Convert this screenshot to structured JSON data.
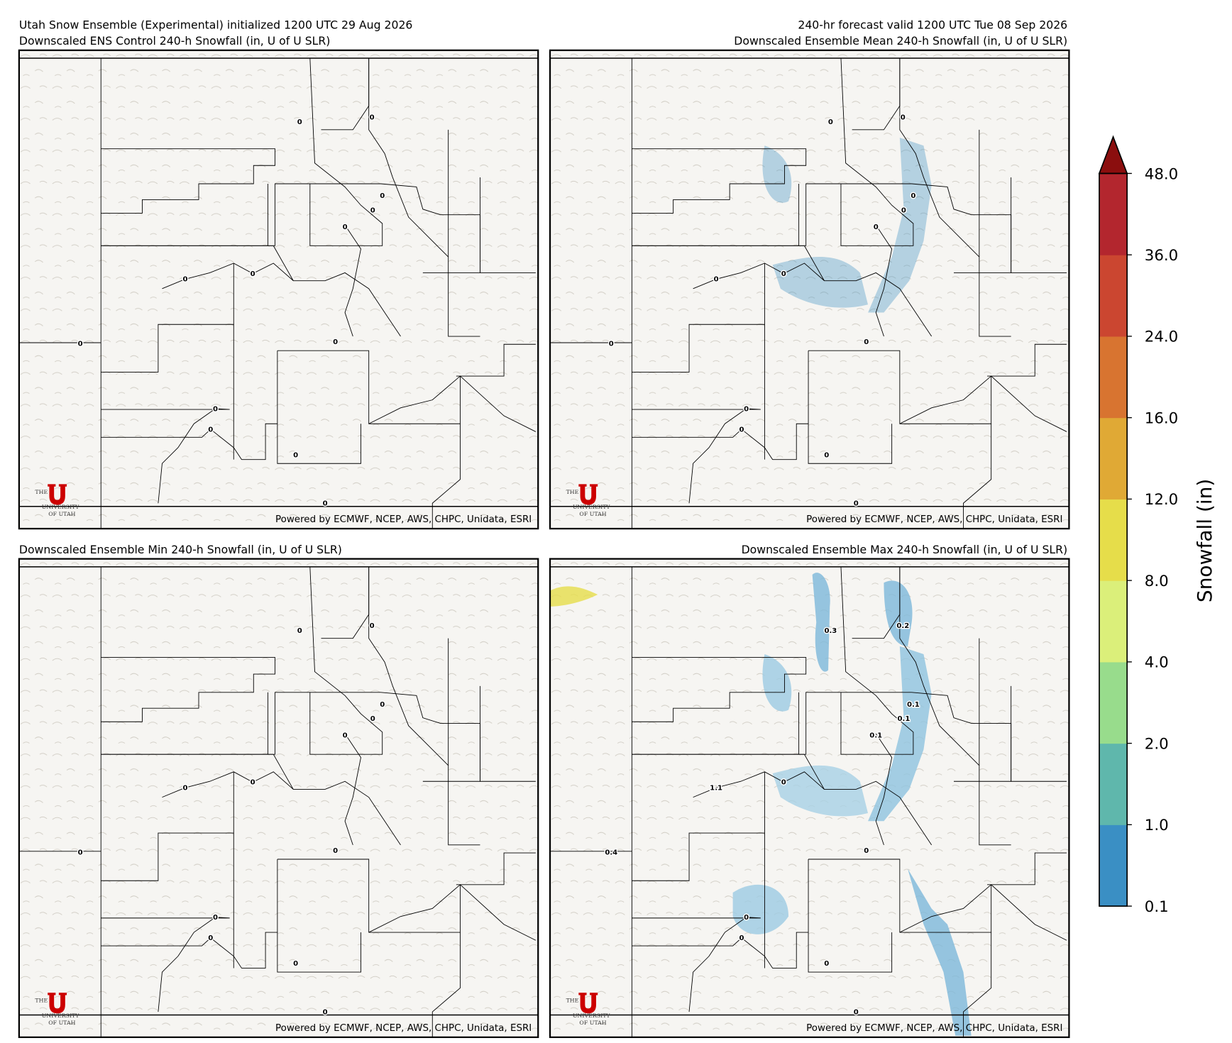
{
  "header": {
    "left": "Utah Snow Ensemble (Experimental) initialized 1200 UTC 29 Aug 2026",
    "right": "240-hr forecast valid 1200 UTC Tue 08 Sep 2026"
  },
  "panels": [
    {
      "title": "Downscaled ENS Control 240-h Snowfall (in, U of U SLR)",
      "credit": "Powered by ECMWF, NCEP, AWS, CHPC, Unidata, ESRI",
      "logo": [
        "THE",
        "UNIVERSITY",
        "OF UTAH"
      ],
      "point_labels": [
        "0",
        "0",
        "0",
        "0",
        "0",
        "0",
        "0",
        "0",
        "0",
        "0",
        "0",
        "0",
        "0"
      ]
    },
    {
      "title": "Downscaled Ensemble Mean 240-h Snowfall (in, U of U SLR)",
      "credit": "Powered by ECMWF, NCEP, AWS, CHPC, Unidata, ESRI",
      "logo": [
        "THE",
        "UNIVERSITY",
        "OF UTAH"
      ],
      "point_labels": [
        "0",
        "0",
        "0",
        "0",
        "0",
        "0",
        "0",
        "0",
        "0",
        "0",
        "0",
        "0",
        "0"
      ]
    },
    {
      "title": "Downscaled Ensemble Min 240-h Snowfall (in, U of U SLR)",
      "credit": "Powered by ECMWF, NCEP, AWS, CHPC, Unidata, ESRI",
      "logo": [
        "THE",
        "UNIVERSITY",
        "OF UTAH"
      ],
      "point_labels": [
        "0",
        "0",
        "0",
        "0",
        "0",
        "0",
        "0",
        "0",
        "0",
        "0",
        "0",
        "0",
        "0"
      ]
    },
    {
      "title": "Downscaled Ensemble Max 240-h Snowfall (in, U of U SLR)",
      "credit": "Powered by ECMWF, NCEP, AWS, CHPC, Unidata, ESRI",
      "logo": [
        "THE",
        "UNIVERSITY",
        "OF UTAH"
      ],
      "point_labels": [
        "0.3",
        "0.2",
        "0.1",
        "0.1",
        "0.1",
        "1.1",
        "0",
        "0.4",
        "0",
        "0",
        "0",
        "0",
        "0"
      ]
    }
  ],
  "colorbar": {
    "label": "Snowfall (in)",
    "ticks": [
      "0.1",
      "1.0",
      "2.0",
      "4.0",
      "8.0",
      "12.0",
      "16.0",
      "24.0",
      "36.0",
      "48.0"
    ],
    "colors": [
      "#3a8fc4",
      "#5fb7ac",
      "#98dc8c",
      "#dbef7a",
      "#e6dd4a",
      "#e0a935",
      "#d87430",
      "#cb4630",
      "#b3262e"
    ],
    "extend_color": "#8b0e0e"
  }
}
